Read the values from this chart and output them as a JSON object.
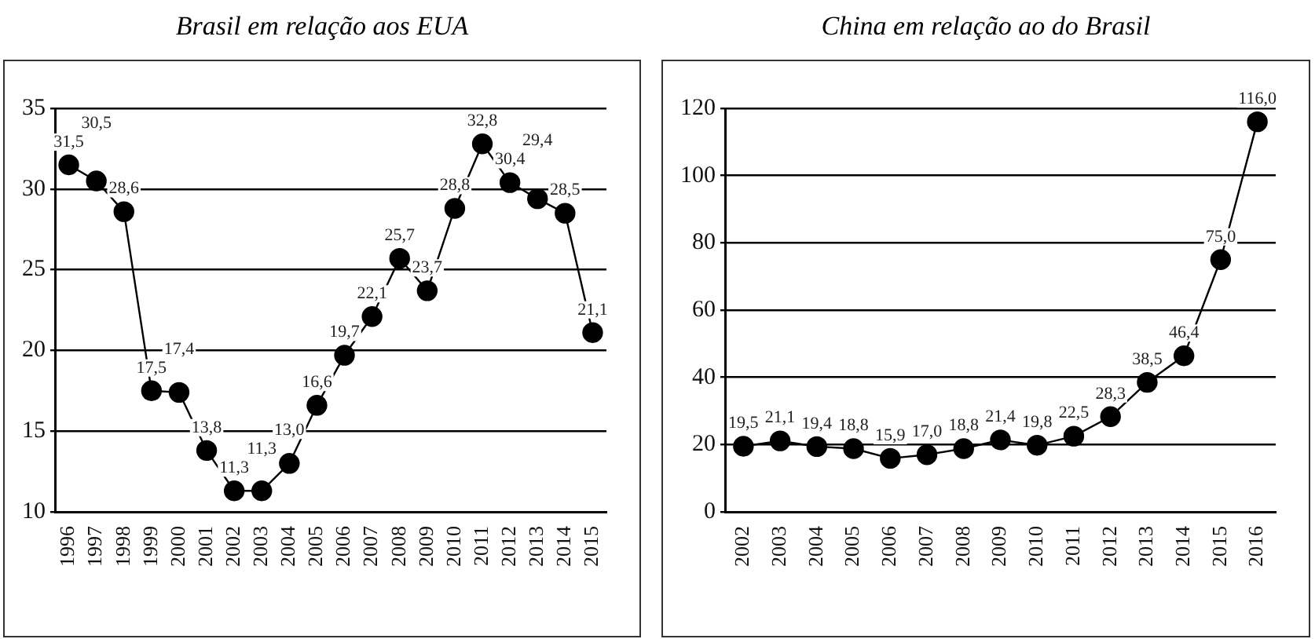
{
  "chart_data": [
    {
      "type": "line",
      "title": "Brasil em relação aos EUA",
      "categories": [
        "1996",
        "1997",
        "1998",
        "1999",
        "2000",
        "2001",
        "2002",
        "2003",
        "2004",
        "2005",
        "2006",
        "2007",
        "2008",
        "2009",
        "2010",
        "2011",
        "2012",
        "2013",
        "2014",
        "2015"
      ],
      "series": [
        {
          "color": "#000000",
          "values": [
            31.5,
            30.5,
            28.6,
            17.5,
            17.4,
            13.8,
            11.3,
            11.3,
            13.0,
            16.6,
            19.7,
            22.1,
            25.7,
            23.7,
            28.8,
            32.8,
            30.4,
            29.4,
            28.5,
            21.1
          ],
          "value_labels": [
            "31,5",
            "30,5",
            "28,6",
            "17,5",
            "17,4",
            "13,8",
            "11,3",
            "11,3",
            "13,0",
            "16,6",
            "19,7",
            "22,1",
            "25,7",
            "23,7",
            "28,8",
            "32,8",
            "30,4",
            "29,4",
            "28,5",
            "21,1"
          ]
        }
      ],
      "ylim": [
        10,
        35
      ],
      "yticks": [
        10,
        15,
        20,
        25,
        30,
        35
      ],
      "grid": "y",
      "marker": "circle",
      "line_style": "solid",
      "legend": false
    },
    {
      "type": "line",
      "title": "China em relação ao do Brasil",
      "categories": [
        "2002",
        "2003",
        "2004",
        "2005",
        "2006",
        "2007",
        "2008",
        "2009",
        "2010",
        "2011",
        "2012",
        "2013",
        "2014",
        "2015",
        "2016"
      ],
      "series": [
        {
          "color": "#000000",
          "values": [
            19.5,
            21.1,
            19.4,
            18.8,
            15.9,
            17.0,
            18.8,
            21.4,
            19.8,
            22.5,
            28.3,
            38.5,
            46.4,
            75.0,
            116.0
          ],
          "value_labels": [
            "19,5",
            "21,1",
            "19,4",
            "18,8",
            "15,9",
            "17,0",
            "18,8",
            "21,4",
            "19,8",
            "22,5",
            "28,3",
            "38,5",
            "46,4",
            "75,0",
            "116,0"
          ]
        }
      ],
      "ylim": [
        0,
        120
      ],
      "yticks": [
        0,
        20,
        40,
        60,
        80,
        100,
        120
      ],
      "grid": "y",
      "marker": "circle",
      "line_style": "solid",
      "legend": false
    }
  ]
}
